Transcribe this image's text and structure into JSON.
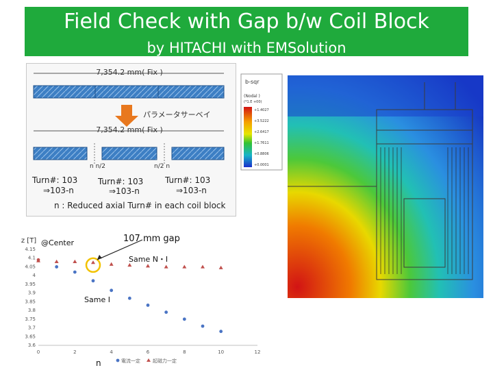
{
  "header": {
    "title": "Field Check with Gap b/w  Coil Block",
    "subtitle": "by HITACHI with EMSolution",
    "background_color": "#1faa3c"
  },
  "diagram": {
    "top_length_label": "7,354.2 mm( Fix )",
    "arrow_label": "パラメータサーベイ",
    "bottom_length_label": "7,354.2 mm( Fix )",
    "gap_label_left": "n n/2",
    "gap_label_right": "n/2 n",
    "turns": [
      {
        "label": "Turn#: 103",
        "change": "⇒103-n"
      },
      {
        "label": "Turn#: 103",
        "change": "⇒103-n"
      },
      {
        "label": "Turn#: 103",
        "change": "⇒103-n"
      }
    ],
    "note": "n : Reduced axial Turn# in each coil block",
    "arrow_color": "#e8781e",
    "coil_color": "#3d7fc4"
  },
  "fem_plot": {
    "title": "b-sqr",
    "subtitle": "(Nodal )",
    "scale": "(*1.E +00)",
    "legend_values": [
      "+1.4027",
      "+3.5222",
      "+2.6417",
      "+1.7611",
      "+0.8806",
      "+0.0001"
    ]
  },
  "chart_data": {
    "type": "scatter",
    "ylabel": "Bz [T]",
    "xlabel": "n",
    "xlim": [
      0,
      12
    ],
    "ylim": [
      3.6,
      4.15
    ],
    "x_ticks": [
      "0",
      "2",
      "4",
      "6",
      "8",
      "10",
      "12"
    ],
    "y_ticks": [
      "4.15",
      "4.1",
      "4.05",
      "4",
      "3.95",
      "3.9",
      "3.85",
      "3.8",
      "3.75",
      "3.7",
      "3.65",
      "3.6"
    ],
    "center_label": "@Center",
    "gap_annotation": "107 mm gap",
    "same_ni_label": "Same N・I",
    "same_i_label": "Same I",
    "series": [
      {
        "name": "電流一定",
        "marker": "circle",
        "color": "#4a74c4",
        "x": [
          1,
          2,
          3,
          4,
          5,
          6,
          7,
          8,
          9,
          10
        ],
        "y": [
          4.05,
          4.02,
          3.97,
          3.915,
          3.87,
          3.83,
          3.79,
          3.75,
          3.71,
          3.68
        ]
      },
      {
        "name": "起磁力一定",
        "marker": "triangle",
        "color": "#c0504d",
        "x": [
          0,
          1,
          2,
          3,
          4,
          5,
          6,
          7,
          8,
          9,
          10
        ],
        "y": [
          4.085,
          4.08,
          4.08,
          4.075,
          4.065,
          4.06,
          4.055,
          4.05,
          4.05,
          4.05,
          4.045
        ]
      },
      {
        "name": "",
        "marker": "circle",
        "color": "#c0504d",
        "x": [
          0
        ],
        "y": [
          4.09
        ]
      }
    ],
    "highlight_color": "#f2c200"
  }
}
